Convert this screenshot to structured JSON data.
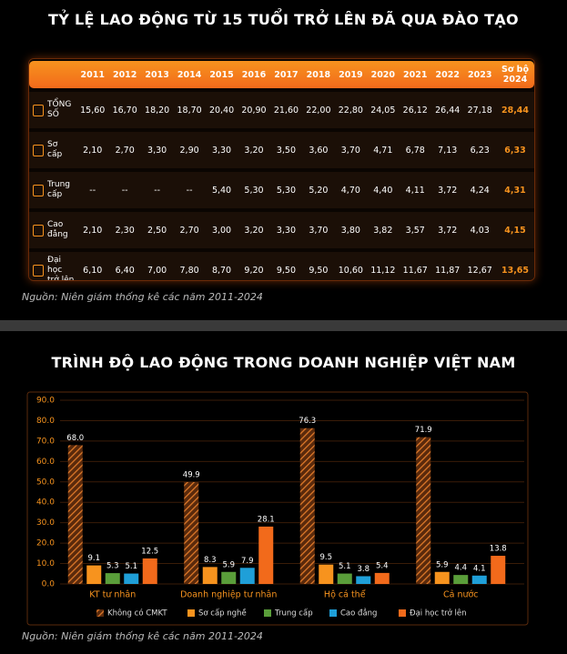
{
  "table": {
    "title": "TỶ LỆ LAO ĐỘNG TỪ 15 TUỔI TRỞ LÊN ĐÃ QUA ĐÀO TẠO",
    "columns": [
      "2011",
      "2012",
      "2013",
      "2014",
      "2015",
      "2016",
      "2017",
      "2018",
      "2019",
      "2020",
      "2021",
      "2022",
      "2023",
      "Sơ bộ 2024"
    ],
    "rows": [
      {
        "label": "TỔNG SỐ",
        "values": [
          "15,60",
          "16,70",
          "18,20",
          "18,70",
          "20,40",
          "20,90",
          "21,60",
          "22,00",
          "22,80",
          "24,05",
          "26,12",
          "26,44",
          "27,18",
          "28,44"
        ]
      },
      {
        "label": "Sơ cấp",
        "values": [
          "2,10",
          "2,70",
          "3,30",
          "2,90",
          "3,30",
          "3,20",
          "3,50",
          "3,60",
          "3,70",
          "4,71",
          "6,78",
          "7,13",
          "6,23",
          "6,33"
        ]
      },
      {
        "label": "Trung cấp",
        "values": [
          "--",
          "--",
          "--",
          "--",
          "5,40",
          "5,30",
          "5,30",
          "5,20",
          "4,70",
          "4,40",
          "4,11",
          "3,72",
          "4,24",
          "4,31"
        ]
      },
      {
        "label": "Cao đẳng",
        "values": [
          "2,10",
          "2,30",
          "2,50",
          "2,70",
          "3,00",
          "3,20",
          "3,30",
          "3,70",
          "3,80",
          "3,82",
          "3,57",
          "3,72",
          "4,03",
          "4,15"
        ]
      },
      {
        "label": "Đại học trở lên",
        "values": [
          "6,10",
          "6,40",
          "7,00",
          "7,80",
          "8,70",
          "9,20",
          "9,50",
          "9,50",
          "10,60",
          "11,12",
          "11,67",
          "11,87",
          "12,67",
          "13,65"
        ]
      }
    ],
    "source": "Nguồn: Niên giám thống kê các năm 2011-2024"
  },
  "chart_data": {
    "type": "bar",
    "title": "TRÌNH ĐỘ LAO ĐỘNG TRONG DOANH NGHIỆP VIỆT NAM",
    "categories": [
      "KT tư nhân",
      "Doanh nghiệp tư nhân",
      "Hộ cá thể",
      "Cả nước"
    ],
    "series": [
      {
        "name": "Không có CMKT",
        "color": "#c8641e",
        "hatched": true,
        "values": [
          68.0,
          49.9,
          76.3,
          71.9
        ],
        "value_labels": [
          "68.0",
          "49.9",
          "76.3",
          "71.9"
        ]
      },
      {
        "name": "Sơ cấp nghề",
        "color": "#f7931e",
        "values": [
          9.1,
          8.3,
          9.5,
          5.9
        ]
      },
      {
        "name": "Trung cấp",
        "color": "#5a9e3a",
        "values": [
          5.3,
          5.9,
          5.1,
          4.4
        ]
      },
      {
        "name": "Cao đẳng",
        "color": "#1f9fd8",
        "values": [
          5.1,
          7.9,
          3.8,
          4.1
        ]
      },
      {
        "name": "Đại học trở lên",
        "color": "#f26a1b",
        "values": [
          12.5,
          28.1,
          5.4,
          13.8
        ]
      }
    ],
    "ylim": [
      0,
      90
    ],
    "yticks": [
      {
        "value": 0,
        "label": "0.0"
      },
      {
        "value": 10,
        "label": "10.0"
      },
      {
        "value": 20,
        "label": "20.0"
      },
      {
        "value": 30,
        "label": "30.0"
      },
      {
        "value": 40,
        "label": "40.0"
      },
      {
        "value": 50,
        "label": "50.0"
      },
      {
        "value": 60,
        "label": "60.0"
      },
      {
        "value": 70,
        "label": "70.0"
      },
      {
        "value": 80,
        "label": "80.0"
      },
      {
        "value": 90,
        "label": "90.0"
      }
    ],
    "source": "Nguồn: Niên giám thống kê các năm 2011-2024"
  }
}
